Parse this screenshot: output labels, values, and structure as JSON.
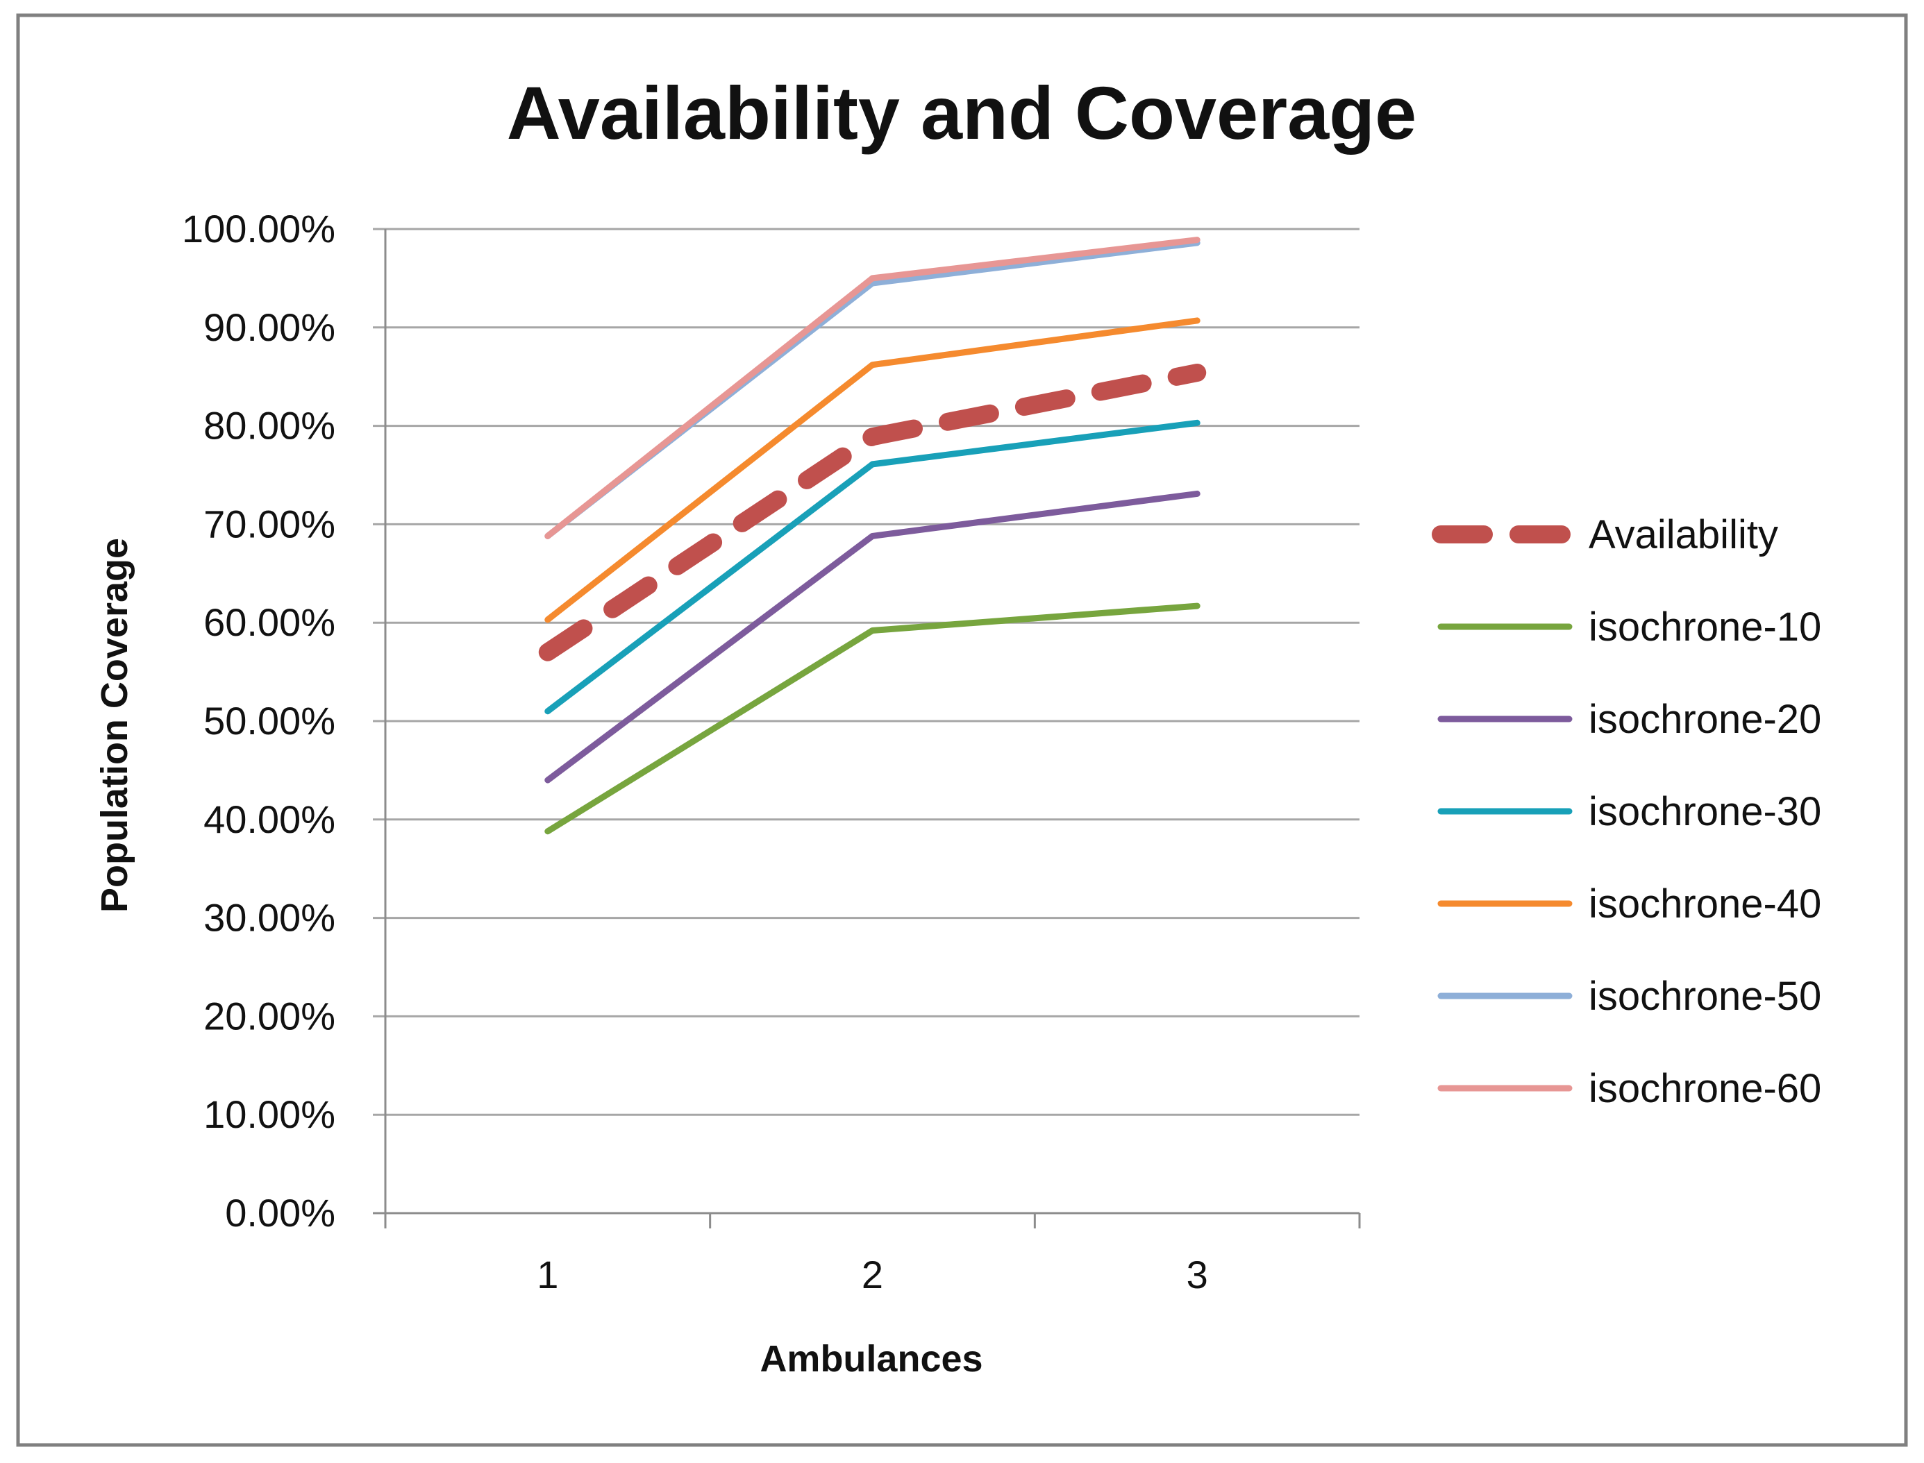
{
  "chart_data": {
    "type": "line",
    "title": "Availability and Coverage",
    "xlabel": "Ambulances",
    "ylabel": "Population Coverage",
    "categories": [
      "1",
      "2",
      "3"
    ],
    "ylim": [
      0,
      100
    ],
    "y_ticks": [
      "0.00%",
      "10.00%",
      "20.00%",
      "30.00%",
      "40.00%",
      "50.00%",
      "60.00%",
      "70.00%",
      "80.00%",
      "90.00%",
      "100.00%"
    ],
    "grid": true,
    "legend_position": "right",
    "series": [
      {
        "name": "Availability",
        "values": [
          57.0,
          78.9,
          85.4
        ],
        "color": "#c0504d",
        "dashed": true
      },
      {
        "name": "isochrone-10",
        "values": [
          38.8,
          59.2,
          61.7
        ],
        "color": "#77a53e",
        "dashed": false
      },
      {
        "name": "isochrone-20",
        "values": [
          44.0,
          68.8,
          73.1
        ],
        "color": "#7d5b9c",
        "dashed": false
      },
      {
        "name": "isochrone-30",
        "values": [
          51.0,
          76.1,
          80.3
        ],
        "color": "#18a0b8",
        "dashed": false
      },
      {
        "name": "isochrone-40",
        "values": [
          60.3,
          86.2,
          90.7
        ],
        "color": "#f58a2e",
        "dashed": false
      },
      {
        "name": "isochrone-50",
        "values": [
          68.8,
          94.5,
          98.6
        ],
        "color": "#8eafd8",
        "dashed": false
      },
      {
        "name": "isochrone-60",
        "values": [
          68.8,
          95.0,
          98.9
        ],
        "color": "#e79694",
        "dashed": false
      }
    ]
  }
}
